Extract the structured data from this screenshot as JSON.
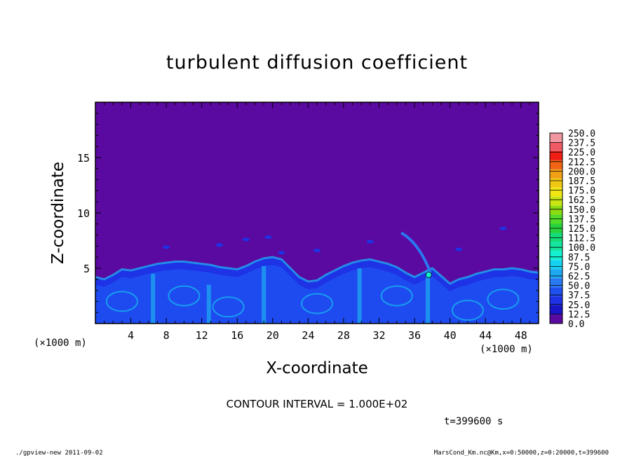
{
  "chart_data": {
    "type": "heatmap",
    "title": "turbulent diffusion coefficient",
    "xlabel": "X-coordinate",
    "ylabel": "Z-coordinate",
    "x_unit_label": "(×1000 m)",
    "y_unit_label": "(×1000 m)",
    "xlim": [
      0,
      50
    ],
    "ylim": [
      0,
      20
    ],
    "x_ticks": [
      4,
      8,
      12,
      16,
      20,
      24,
      28,
      32,
      36,
      40,
      44,
      48
    ],
    "y_ticks": [
      5,
      10,
      15
    ],
    "colorbar": {
      "levels": [
        "0.0",
        "12.5",
        "25.0",
        "37.5",
        "50.0",
        "62.5",
        "75.0",
        "87.5",
        "100.0",
        "112.5",
        "125.0",
        "137.5",
        "150.0",
        "162.5",
        "175.0",
        "187.5",
        "200.0",
        "212.5",
        "225.0",
        "237.5",
        "250.0"
      ],
      "colors": [
        "#5a0aa0",
        "#1a14c8",
        "#1e32e6",
        "#1e50f0",
        "#2a78f2",
        "#1ea8f0",
        "#14d2f0",
        "#14f0d2",
        "#14e6a0",
        "#14dc78",
        "#28d23c",
        "#50dc28",
        "#8cdc14",
        "#c8e614",
        "#f0e614",
        "#f0c814",
        "#f0a014",
        "#f06414",
        "#f01e14",
        "#f05a64",
        "#f096a0"
      ]
    },
    "field_description": "Turbulent layer of high diffusivity (≈12.5–75) below ~5.5 km with plumes; uniform 0.0 above",
    "boundary_layer_top_km": [
      [
        0,
        4.2
      ],
      [
        1,
        4.0
      ],
      [
        2,
        4.4
      ],
      [
        3,
        4.9
      ],
      [
        4,
        4.8
      ],
      [
        5,
        5.0
      ],
      [
        6,
        5.2
      ],
      [
        7,
        5.4
      ],
      [
        8,
        5.5
      ],
      [
        9,
        5.6
      ],
      [
        10,
        5.6
      ],
      [
        11,
        5.5
      ],
      [
        12,
        5.4
      ],
      [
        13,
        5.3
      ],
      [
        14,
        5.1
      ],
      [
        15,
        5.0
      ],
      [
        16,
        4.9
      ],
      [
        17,
        5.2
      ],
      [
        18,
        5.6
      ],
      [
        19,
        5.9
      ],
      [
        20,
        6.0
      ],
      [
        21,
        5.8
      ],
      [
        22,
        5.0
      ],
      [
        23,
        4.2
      ],
      [
        24,
        3.8
      ],
      [
        25,
        3.9
      ],
      [
        26,
        4.4
      ],
      [
        27,
        4.8
      ],
      [
        28,
        5.2
      ],
      [
        29,
        5.5
      ],
      [
        30,
        5.7
      ],
      [
        31,
        5.8
      ],
      [
        32,
        5.6
      ],
      [
        33,
        5.4
      ],
      [
        34,
        5.1
      ],
      [
        35,
        4.6
      ],
      [
        36,
        4.2
      ],
      [
        37,
        4.6
      ],
      [
        38,
        5.0
      ],
      [
        39,
        4.3
      ],
      [
        40,
        3.6
      ],
      [
        41,
        4.0
      ],
      [
        42,
        4.2
      ],
      [
        43,
        4.5
      ],
      [
        44,
        4.7
      ],
      [
        45,
        4.9
      ],
      [
        46,
        4.9
      ],
      [
        47,
        5.0
      ],
      [
        48,
        4.9
      ],
      [
        49,
        4.7
      ],
      [
        50,
        4.6
      ]
    ]
  },
  "annotations": {
    "contour_interval": "CONTOUR INTERVAL = 1.000E+02",
    "time": "t=399600 s",
    "footer_left": "./gpview-new  2011-09-02",
    "footer_right": "MarsCond_Km.nc@Km,x=0:50000,z=0:20000,t=399600"
  }
}
